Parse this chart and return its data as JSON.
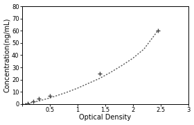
{
  "x_data": [
    0.1,
    0.2,
    0.3,
    0.5,
    1.4,
    2.45
  ],
  "y_data": [
    0.5,
    2.0,
    4.5,
    7.0,
    25.0,
    60.0
  ],
  "x_fit": [
    0.0,
    0.1,
    0.3,
    0.5,
    0.8,
    1.0,
    1.2,
    1.4,
    1.6,
    1.8,
    2.0,
    2.2,
    2.45
  ],
  "y_fit": [
    0.0,
    0.5,
    2.5,
    5.0,
    9.5,
    13.0,
    17.0,
    21.0,
    26.0,
    31.5,
    37.5,
    45.0,
    60.0
  ],
  "xlabel": "Optical Density",
  "ylabel": "Concentration(ng/mL)",
  "xlim": [
    0,
    3
  ],
  "ylim": [
    0,
    80
  ],
  "xticks": [
    0,
    0.5,
    1,
    1.5,
    2,
    2.5,
    3
  ],
  "yticks": [
    0,
    10,
    20,
    30,
    40,
    50,
    60,
    70,
    80
  ],
  "marker_color": "#444444",
  "line_color": "#555555",
  "background_color": "#ffffff",
  "marker_size": 4,
  "line_width": 1.0,
  "font_size": 6,
  "label_font_size": 7,
  "figsize": [
    2.8,
    1.8
  ],
  "dpi": 100
}
